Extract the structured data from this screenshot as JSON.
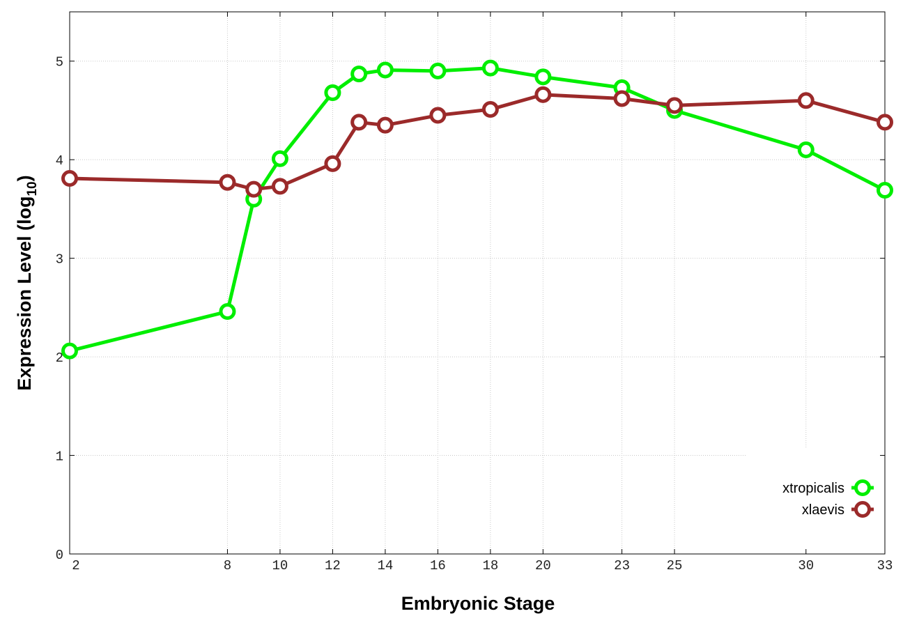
{
  "chart_data": {
    "type": "line",
    "xlabel": "Embryonic Stage",
    "ylabel_main": "Expression Level (log",
    "ylabel_sub": "10",
    "ylabel_close": ")",
    "xlim": [
      2,
      33
    ],
    "ylim": [
      0,
      5.5
    ],
    "x_ticks": [
      2,
      8,
      10,
      12,
      14,
      16,
      18,
      20,
      23,
      25,
      30,
      33
    ],
    "y_ticks": [
      0,
      1,
      2,
      3,
      4,
      5
    ],
    "grid": true,
    "legend_position": "bottom-right",
    "series": [
      {
        "name": "xtropicalis",
        "color": "#00ee00",
        "x": [
          2,
          8,
          9,
          10,
          12,
          13,
          14,
          16,
          18,
          20,
          23,
          25,
          30,
          33
        ],
        "values": [
          2.06,
          2.46,
          3.6,
          4.01,
          4.68,
          4.87,
          4.91,
          4.9,
          4.93,
          4.84,
          4.73,
          4.5,
          4.1,
          3.69
        ]
      },
      {
        "name": "xlaevis",
        "color": "#9b2a2a",
        "x": [
          2,
          8,
          9,
          10,
          12,
          13,
          14,
          16,
          18,
          20,
          23,
          25,
          30,
          33
        ],
        "values": [
          3.81,
          3.77,
          3.7,
          3.73,
          3.96,
          4.38,
          4.35,
          4.45,
          4.51,
          4.66,
          4.62,
          4.55,
          4.6,
          4.38
        ]
      }
    ]
  }
}
